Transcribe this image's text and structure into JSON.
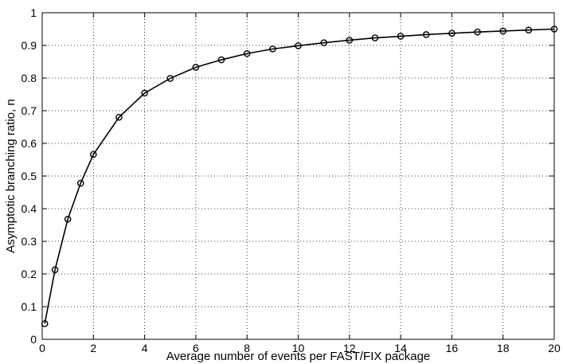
{
  "chart_data": {
    "type": "line",
    "title": "",
    "xlabel": "Average number of events per FAST/FIX package",
    "ylabel": "Asymptotic branching ratio, n",
    "xlim": [
      0,
      20
    ],
    "ylim": [
      0,
      1
    ],
    "x_ticks": [
      0,
      2,
      4,
      6,
      8,
      10,
      12,
      14,
      16,
      18,
      20
    ],
    "y_ticks": [
      0,
      0.1,
      0.2,
      0.3,
      0.4,
      0.5,
      0.6,
      0.7,
      0.8,
      0.9,
      1
    ],
    "x_tick_labels": [
      "0",
      "2",
      "4",
      "6",
      "8",
      "10",
      "12",
      "14",
      "16",
      "18",
      "20"
    ],
    "y_tick_labels": [
      "0",
      "0.1",
      "0.2",
      "0.3",
      "0.4",
      "0.5",
      "0.6",
      "0.7",
      "0.8",
      "0.9",
      "1"
    ],
    "grid": true,
    "grid_style": "dotted",
    "legend": "none",
    "series": [
      {
        "marker": "open-circle",
        "color": "#000000",
        "x": [
          0.1,
          0.5,
          1,
          1.5,
          2,
          3,
          4,
          5,
          6,
          7,
          8,
          9,
          10,
          11,
          12,
          13,
          14,
          15,
          16,
          17,
          18,
          19,
          20
        ],
        "y": [
          0.048,
          0.213,
          0.368,
          0.478,
          0.566,
          0.68,
          0.754,
          0.799,
          0.833,
          0.856,
          0.875,
          0.889,
          0.899,
          0.908,
          0.916,
          0.923,
          0.928,
          0.933,
          0.937,
          0.941,
          0.944,
          0.947,
          0.95
        ]
      }
    ]
  }
}
